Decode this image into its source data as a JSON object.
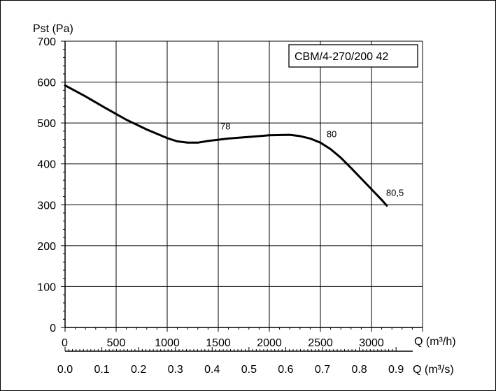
{
  "chart_data": {
    "type": "line",
    "y_axis_label": "Pst (Pa)",
    "x_axis_label": "Q (m³/h)",
    "x2_axis_label": "Q (m³/s)",
    "x_ticks": [
      "0",
      "500",
      "1000",
      "1500",
      "2000",
      "2500",
      "3000"
    ],
    "x2_ticks": [
      "0.0",
      "0.1",
      "0.2",
      "0.3",
      "0.4",
      "0.5",
      "0.6",
      "0.7",
      "0.8",
      "0.9"
    ],
    "y_ticks": [
      "0",
      "100",
      "200",
      "300",
      "400",
      "500",
      "600",
      "700"
    ],
    "xlim": [
      0,
      3500
    ],
    "ylim": [
      0,
      700
    ],
    "x2lim": [
      0,
      0.972
    ],
    "grid": true,
    "model_label": "CBM/4-270/200  42",
    "series": [
      {
        "x": [
          0,
          200,
          400,
          600,
          800,
          1000,
          1100,
          1200,
          1300,
          1400,
          1600,
          1800,
          2000,
          2200,
          2300,
          2400,
          2500,
          2600,
          2700,
          2800,
          2900,
          3000,
          3100,
          3150
        ],
        "y": [
          592,
          565,
          536,
          508,
          484,
          463,
          455,
          452,
          452,
          456,
          462,
          466,
          470,
          471,
          468,
          462,
          452,
          436,
          415,
          390,
          364,
          338,
          312,
          298
        ]
      }
    ],
    "annotations": [
      {
        "text": "78",
        "x": 1570,
        "y": 470
      },
      {
        "text": "80",
        "x": 2610,
        "y": 452
      },
      {
        "text": "80,5",
        "x": 3230,
        "y": 308
      }
    ]
  }
}
